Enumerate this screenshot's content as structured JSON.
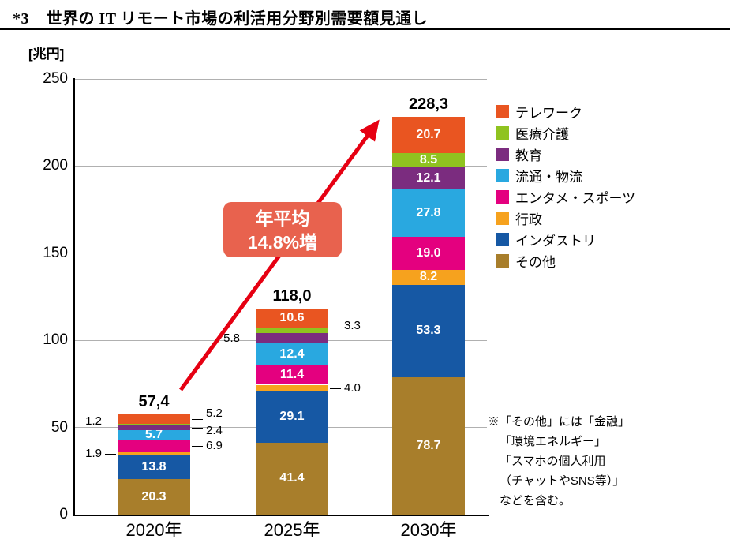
{
  "header": {
    "fig_no": "*3"
  },
  "chart_data": {
    "type": "bar",
    "stacked": true,
    "title": "世界の IT リモート市場の利活用分野別需要額見通し",
    "ylabel": "[兆円]",
    "xlabel": "",
    "ylim": [
      0,
      250
    ],
    "yticks": [
      0,
      50,
      100,
      150,
      200,
      250
    ],
    "grid": true,
    "legend_position": "right",
    "categories": [
      "2020年",
      "2025年",
      "2030年"
    ],
    "totals_display": [
      "57,4",
      "118,0",
      "228,3"
    ],
    "series": [
      {
        "name": "その他",
        "color": "#A87E2B",
        "values": [
          20.3,
          41.4,
          78.7
        ],
        "label_pos": [
          "in",
          "in",
          "in"
        ]
      },
      {
        "name": "インダストリ",
        "color": "#1658A4",
        "values": [
          13.8,
          29.1,
          53.3
        ],
        "label_pos": [
          "in",
          "in",
          "in"
        ]
      },
      {
        "name": "行政",
        "color": "#F6A21E",
        "values": [
          1.9,
          4.0,
          8.2
        ],
        "label_pos": [
          "left",
          "right",
          "in"
        ]
      },
      {
        "name": "エンタメ・スポーツ",
        "color": "#E4007F",
        "values": [
          6.9,
          11.4,
          19.0
        ],
        "label_pos": [
          "right",
          "in",
          "in"
        ]
      },
      {
        "name": "流通・物流",
        "color": "#29A8E0",
        "values": [
          5.7,
          12.4,
          27.8
        ],
        "label_pos": [
          "in",
          "in",
          "in"
        ]
      },
      {
        "name": "教育",
        "color": "#7B2C7F",
        "values": [
          2.4,
          5.8,
          12.1
        ],
        "label_pos": [
          "right",
          "left",
          "in"
        ],
        "label_dy": [
          4,
          0,
          0
        ]
      },
      {
        "name": "医療介護",
        "color": "#8FC320",
        "values": [
          1.2,
          3.3,
          8.5
        ],
        "label_pos": [
          "left",
          "right",
          "in"
        ],
        "label_dy": [
          -4,
          -6,
          0
        ]
      },
      {
        "name": "テレワーク",
        "color": "#E95521",
        "values": [
          5.2,
          10.6,
          20.7
        ],
        "label_pos": [
          "right",
          "in",
          "in"
        ],
        "label_dy": [
          -7,
          0,
          0
        ]
      }
    ],
    "legend_order": [
      "テレワーク",
      "医療介護",
      "教育",
      "流通・物流",
      "エンタメ・スポーツ",
      "行政",
      "インダストリ",
      "その他"
    ],
    "annotation": {
      "line1": "年平均",
      "line2": "14.8%増",
      "box_color": "#E8624E",
      "arrow_color": "#E60012"
    },
    "note_lines": [
      "※「その他」には「金融」",
      "「環境エネルギー」",
      "「スマホの個人利用",
      "（チャットやSNS等）」",
      "などを含む。"
    ]
  }
}
